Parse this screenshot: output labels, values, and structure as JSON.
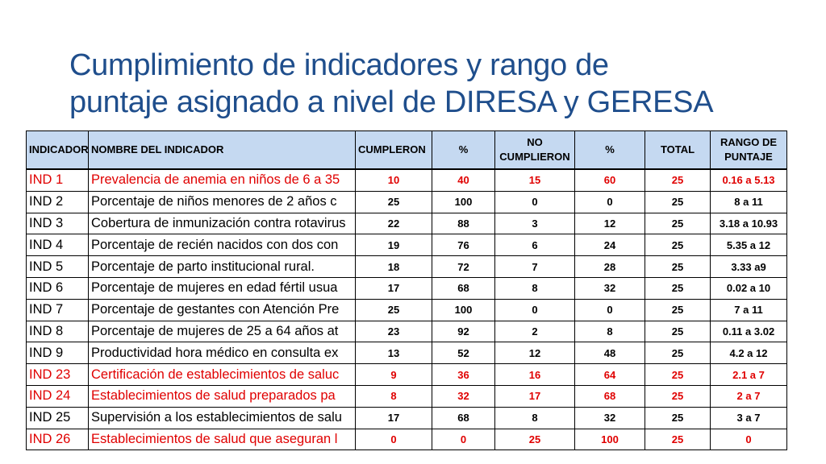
{
  "title": {
    "line1": "Cumplimiento de indicadores y rango de",
    "line2": "puntaje asignado a nivel de DIRESA y GERESA"
  },
  "table": {
    "headers": [
      "INDICADOR",
      "NOMBRE DEL INDICADOR",
      "CUMPLERON",
      "%",
      "NO CUMPLIERON",
      "%",
      "TOTAL",
      "RANGO DE PUNTAJE"
    ],
    "highlight_color": "#e00000",
    "header_bg": "#c5d9f1",
    "rows": [
      {
        "code": "IND 1",
        "name": "Prevalencia de anemia en niños de 6 a 35",
        "cumpleron": "10",
        "pct1": "40",
        "no": "15",
        "pct2": "60",
        "total": "25",
        "rango": "0.16 a 5.13",
        "red": true
      },
      {
        "code": "IND 2",
        "name": " Porcentaje de niños menores de 2 años c",
        "cumpleron": "25",
        "pct1": "100",
        "no": "0",
        "pct2": "0",
        "total": "25",
        "rango": "8 a 11",
        "red": false
      },
      {
        "code": "IND 3",
        "name": "Cobertura de inmunización contra rotavirus",
        "cumpleron": "22",
        "pct1": "88",
        "no": "3",
        "pct2": "12",
        "total": "25",
        "rango": "3.18 a 10.93",
        "red": false
      },
      {
        "code": "IND 4",
        "name": "Porcentaje de recién nacidos con dos con",
        "cumpleron": "19",
        "pct1": "76",
        "no": "6",
        "pct2": "24",
        "total": "25",
        "rango": "5.35 a 12",
        "red": false
      },
      {
        "code": "IND 5",
        "name": "Porcentaje de parto institucional rural.",
        "cumpleron": "18",
        "pct1": "72",
        "no": "7",
        "pct2": "28",
        "total": "25",
        "rango": "3.33 a9",
        "red": false
      },
      {
        "code": "IND 6",
        "name": "Porcentaje de mujeres en edad fértil usua",
        "cumpleron": "17",
        "pct1": "68",
        "no": "8",
        "pct2": "32",
        "total": "25",
        "rango": "0.02 a 10",
        "red": false
      },
      {
        "code": "IND 7",
        "name": "Porcentaje de gestantes con Atención Pre",
        "cumpleron": "25",
        "pct1": "100",
        "no": "0",
        "pct2": "0",
        "total": "25",
        "rango": "7 a 11",
        "red": false
      },
      {
        "code": "IND 8",
        "name": "Porcentaje de mujeres de 25 a 64 años at",
        "cumpleron": "23",
        "pct1": "92",
        "no": "2",
        "pct2": "8",
        "total": "25",
        "rango": "0.11 a 3.02",
        "red": false
      },
      {
        "code": "IND 9",
        "name": "Productividad hora médico en consulta ex",
        "cumpleron": "13",
        "pct1": "52",
        "no": "12",
        "pct2": "48",
        "total": "25",
        "rango": "4.2 a 12",
        "red": false
      },
      {
        "code": "IND 23",
        "name": "Certificación de establecimientos de saluc",
        "cumpleron": "9",
        "pct1": "36",
        "no": "16",
        "pct2": "64",
        "total": "25",
        "rango": "2.1 a 7",
        "red": true
      },
      {
        "code": "IND 24",
        "name": "Establecimientos de salud preparados pa",
        "cumpleron": "8",
        "pct1": "32",
        "no": "17",
        "pct2": "68",
        "total": "25",
        "rango": "2 a 7",
        "red": true
      },
      {
        "code": "IND 25",
        "name": "Supervisión a los establecimientos de salu",
        "cumpleron": "17",
        "pct1": "68",
        "no": "8",
        "pct2": "32",
        "total": "25",
        "rango": "3 a 7",
        "red": false
      },
      {
        "code": "IND 26",
        "name": "Establecimientos de salud que aseguran l",
        "cumpleron": "0",
        "pct1": "0",
        "no": "25",
        "pct2": "100",
        "total": "25",
        "rango": "0",
        "red": true
      }
    ]
  }
}
